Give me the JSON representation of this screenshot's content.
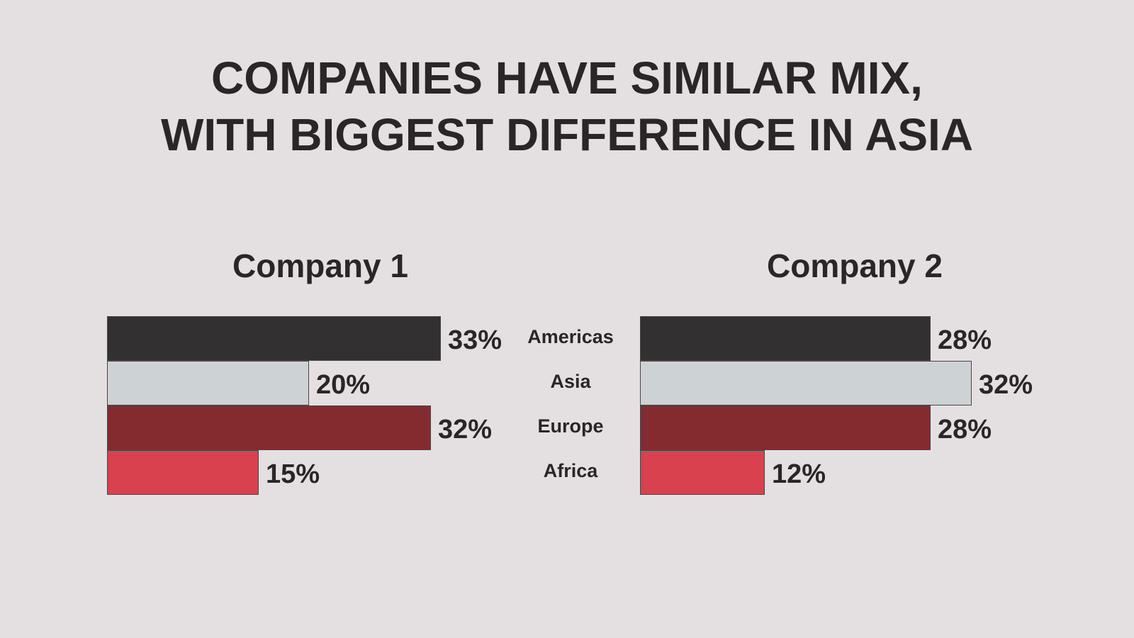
{
  "title": {
    "line1": "COMPANIES HAVE SIMILAR MIX,",
    "line2": "WITH BIGGEST DIFFERENCE IN ASIA"
  },
  "regions": [
    "Americas",
    "Asia",
    "Europe",
    "Africa"
  ],
  "colors": {
    "Americas": "#333031",
    "Asia": "#cdd2d4",
    "Europe": "#842b30",
    "Africa": "#d9414f",
    "background": "#e4e0e1",
    "text": "#2a2627"
  },
  "companies": [
    {
      "name": "Company 1",
      "values": [
        {
          "region": "Americas",
          "value": 33,
          "label": "33%"
        },
        {
          "region": "Asia",
          "value": 20,
          "label": "20%"
        },
        {
          "region": "Europe",
          "value": 32,
          "label": "32%"
        },
        {
          "region": "Africa",
          "value": 15,
          "label": "15%"
        }
      ]
    },
    {
      "name": "Company 2",
      "values": [
        {
          "region": "Americas",
          "value": 28,
          "label": "28%"
        },
        {
          "region": "Asia",
          "value": 32,
          "label": "32%"
        },
        {
          "region": "Europe",
          "value": 28,
          "label": "28%"
        },
        {
          "region": "Africa",
          "value": 12,
          "label": "12%"
        }
      ]
    }
  ],
  "chart_data": [
    {
      "type": "bar",
      "orientation": "horizontal",
      "title": "Company 1",
      "categories": [
        "Americas",
        "Asia",
        "Europe",
        "Africa"
      ],
      "values": [
        33,
        20,
        32,
        15
      ],
      "unit": "%",
      "xlabel": "",
      "ylabel": "",
      "grid": false,
      "legend": null,
      "data_labels": [
        "33%",
        "20%",
        "32%",
        "15%"
      ]
    },
    {
      "type": "bar",
      "orientation": "horizontal",
      "title": "Company 2",
      "categories": [
        "Americas",
        "Asia",
        "Europe",
        "Africa"
      ],
      "values": [
        28,
        32,
        28,
        12
      ],
      "unit": "%",
      "xlabel": "",
      "ylabel": "",
      "grid": false,
      "legend": null,
      "data_labels": [
        "28%",
        "32%",
        "28%",
        "12%"
      ]
    }
  ],
  "suptitle": "COMPANIES HAVE SIMILAR MIX, WITH BIGGEST DIFFERENCE IN ASIA"
}
